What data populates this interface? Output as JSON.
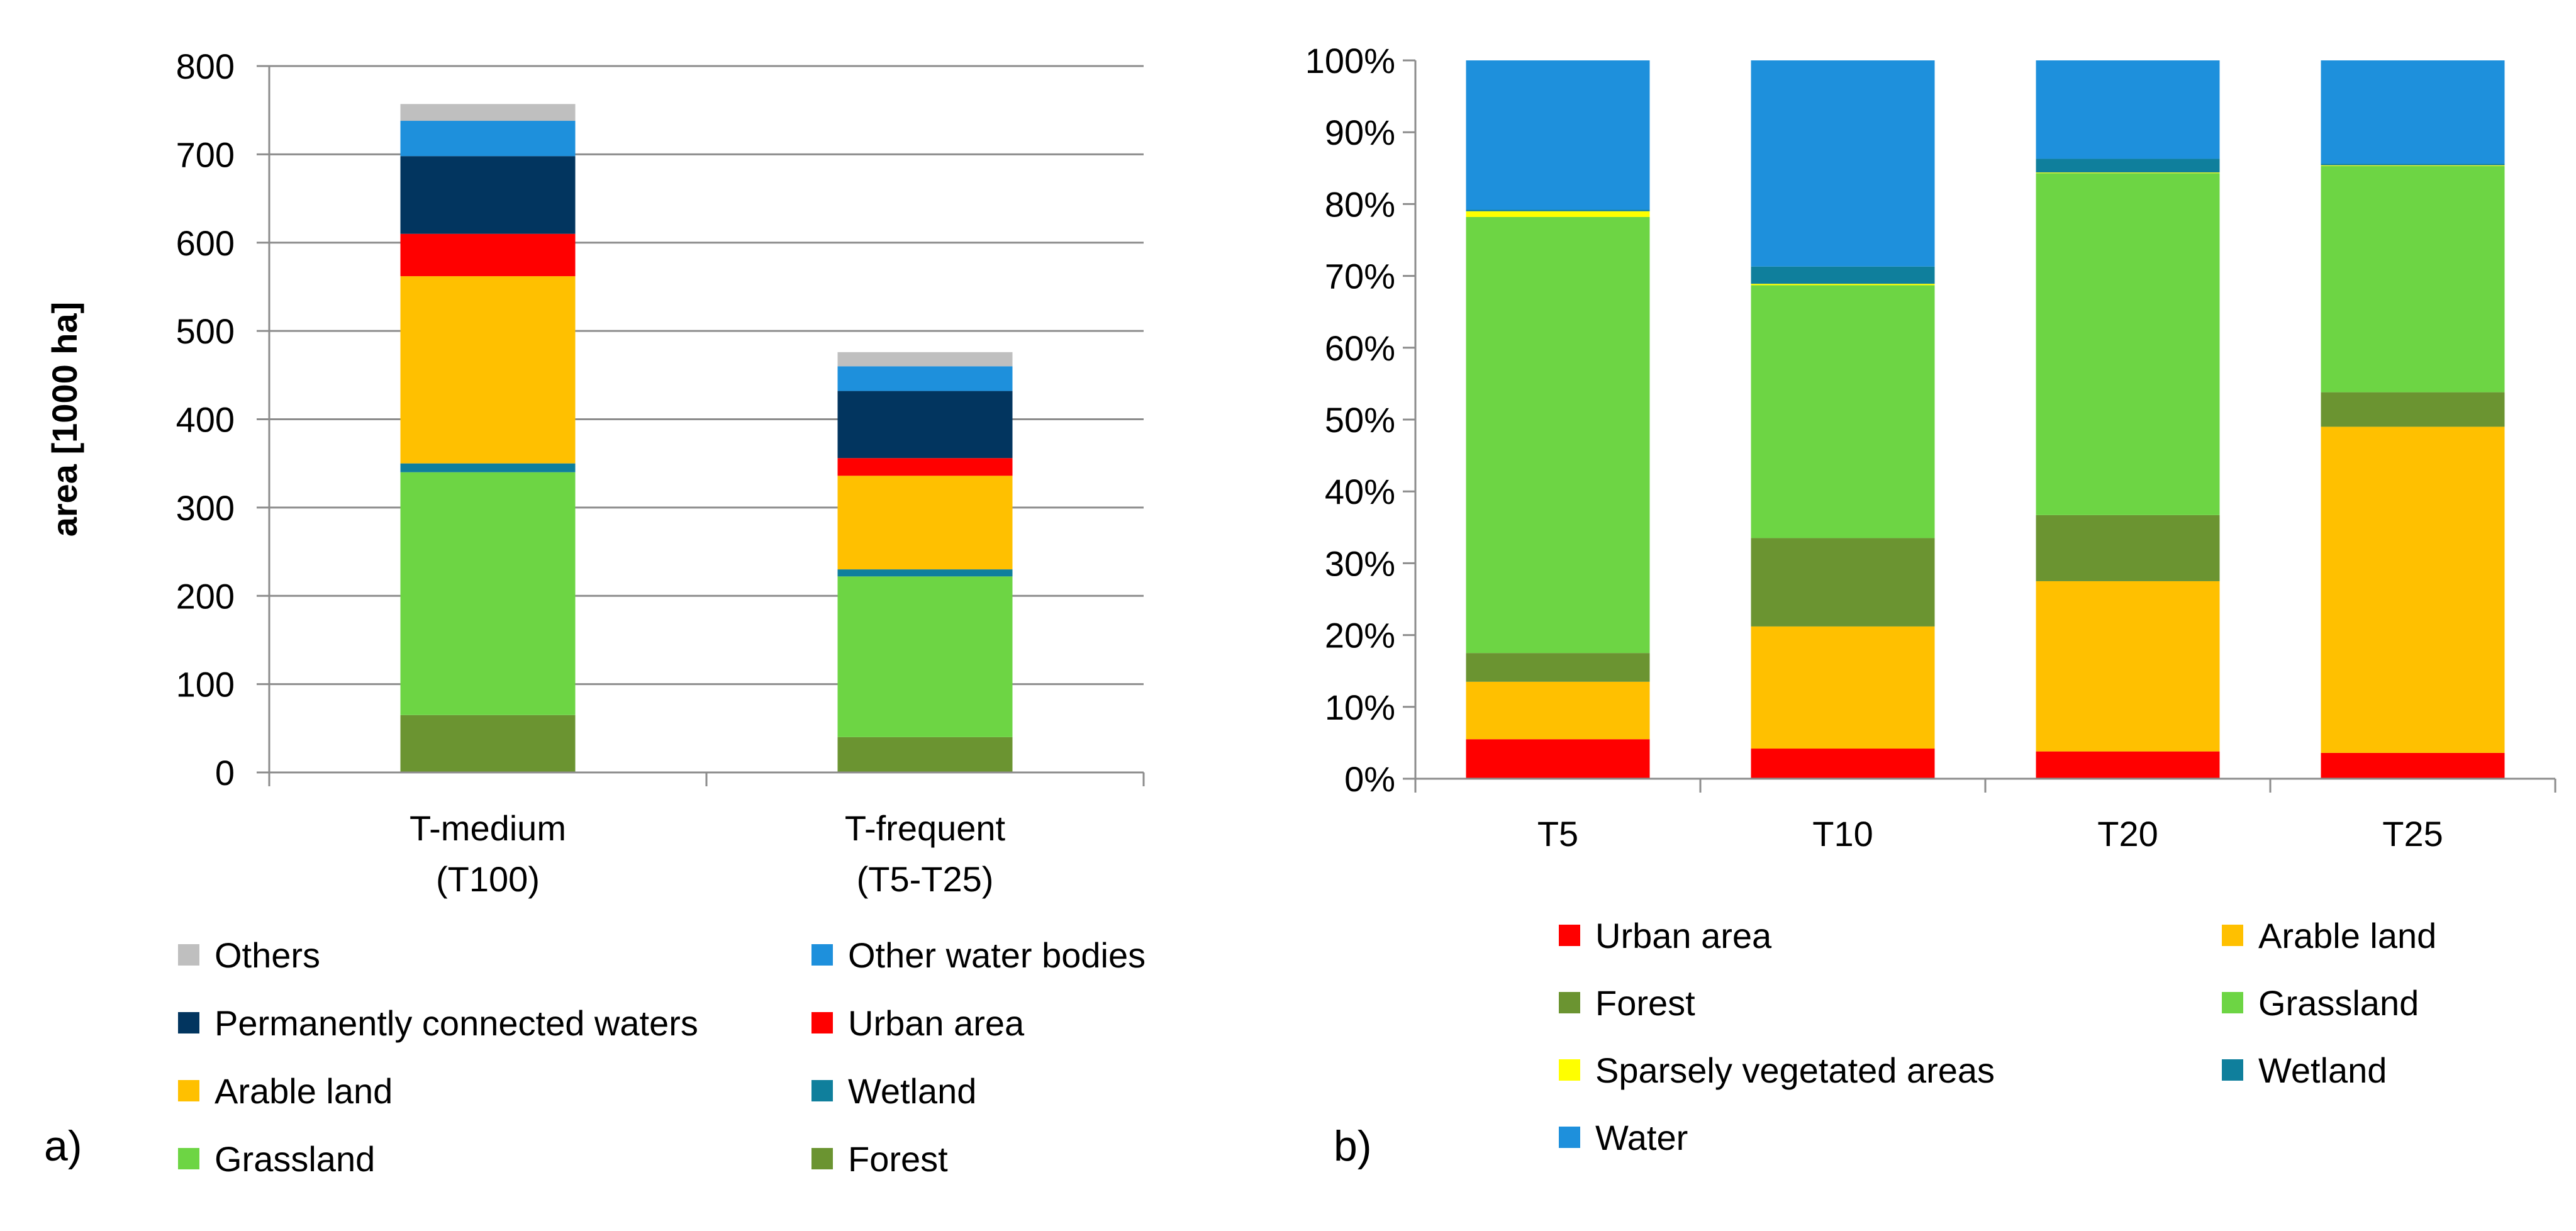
{
  "panels": {
    "a": {
      "label": "a)"
    },
    "b": {
      "label": "b)"
    }
  },
  "chart_data": [
    {
      "id": "a",
      "type": "bar",
      "stacked": true,
      "title": "",
      "xlabel": "",
      "ylabel": "area [1000 ha]",
      "ylim": [
        0,
        800
      ],
      "yticks": [
        "0",
        "100",
        "200",
        "300",
        "400",
        "500",
        "600",
        "700",
        "800"
      ],
      "categories": [
        [
          "T-medium",
          "(T100)"
        ],
        [
          "T-frequent",
          "(T5-T25)"
        ]
      ],
      "grid": true,
      "series": [
        {
          "name": "Forest",
          "color": "#6b9431",
          "values": [
            65,
            40
          ]
        },
        {
          "name": "Grassland",
          "color": "#6dd544",
          "values": [
            275,
            182
          ]
        },
        {
          "name": "Wetland",
          "color": "#0f7f9c",
          "values": [
            10,
            8
          ]
        },
        {
          "name": "Arable land",
          "color": "#ffc000",
          "values": [
            212,
            106
          ]
        },
        {
          "name": "Urban area",
          "color": "#ff0000",
          "values": [
            48,
            20
          ]
        },
        {
          "name": "Permanently connected waters",
          "color": "#02355f",
          "values": [
            88,
            76
          ]
        },
        {
          "name": "Other water bodies",
          "color": "#1e90dc",
          "values": [
            40,
            28
          ]
        },
        {
          "name": "Others",
          "color": "#bfbfbf",
          "values": [
            19,
            16
          ]
        }
      ],
      "legend": [
        "Others",
        "Other water bodies",
        "Permanently connected waters",
        "Urban area",
        "Arable land",
        "Wetland",
        "Grassland",
        "Forest"
      ],
      "legend_placement": "bottom"
    },
    {
      "id": "b",
      "type": "bar",
      "stacked": true,
      "percent": true,
      "title": "",
      "xlabel": "",
      "ylabel": "",
      "ylim": [
        0,
        100
      ],
      "yticks": [
        "0%",
        "10%",
        "20%",
        "30%",
        "40%",
        "50%",
        "60%",
        "70%",
        "80%",
        "90%",
        "100%"
      ],
      "categories": [
        "T5",
        "T10",
        "T20",
        "T25"
      ],
      "grid": false,
      "series": [
        {
          "name": "Urban area",
          "color": "#ff0000",
          "values": [
            5.5,
            4.2,
            3.8,
            3.6
          ]
        },
        {
          "name": "Arable land",
          "color": "#ffc000",
          "values": [
            8.0,
            17.0,
            23.7,
            45.4
          ]
        },
        {
          "name": "Forest",
          "color": "#6b9431",
          "values": [
            4.0,
            12.3,
            9.2,
            4.8
          ]
        },
        {
          "name": "Grassland",
          "color": "#6dd544",
          "values": [
            60.7,
            35.2,
            47.6,
            31.5
          ]
        },
        {
          "name": "Sparsely vegetated areas",
          "color": "#ffff00",
          "values": [
            0.8,
            0.2,
            0.1,
            0.1
          ]
        },
        {
          "name": "Wetland",
          "color": "#0f7f9c",
          "values": [
            0.2,
            2.4,
            1.9,
            0.2
          ]
        },
        {
          "name": "Water",
          "color": "#1e90dc",
          "values": [
            20.8,
            28.7,
            13.7,
            14.4
          ]
        }
      ],
      "legend": [
        "Urban area",
        "Arable land",
        "Forest",
        "Grassland",
        "Sparsely vegetated areas",
        "Wetland",
        "Water"
      ],
      "legend_placement": "bottom"
    }
  ]
}
